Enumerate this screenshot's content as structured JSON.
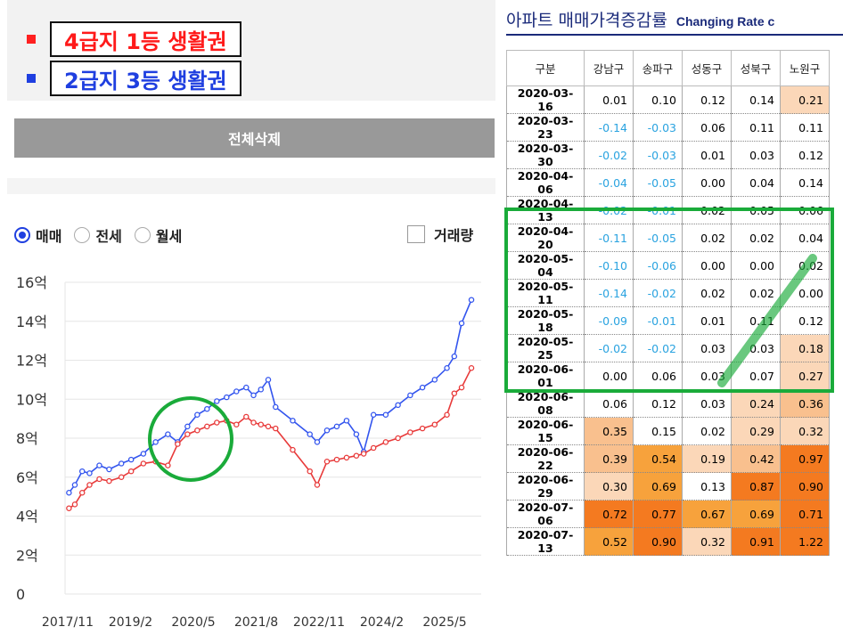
{
  "legend": {
    "items": [
      {
        "label": "4급지 1등 생활권",
        "color": "#ff2020"
      },
      {
        "label": "2급지 3등 생활권",
        "color": "#1f3fe0"
      }
    ]
  },
  "toolbar": {
    "clear_all_label": "전체삭제"
  },
  "trade_type": {
    "options": [
      "매매",
      "전세",
      "월세"
    ],
    "selected": "매매",
    "volume_label": "거래량",
    "volume_checked": false
  },
  "colors": {
    "red_series": "#e83a3a",
    "blue_series": "#3355ee",
    "annotation_green": "#1aab3a"
  },
  "table": {
    "title_kr": "아파트 매매가격증감률",
    "title_en": "Changing Rate c",
    "header": [
      "구분",
      "강남구",
      "송파구",
      "성동구",
      "성북구",
      "노원구"
    ],
    "rows": [
      {
        "date": "2020-03-16",
        "values": [
          "0.01",
          "0.10",
          "0.12",
          "0.14",
          "0.21"
        ]
      },
      {
        "date": "2020-03-23",
        "values": [
          "-0.14",
          "-0.03",
          "0.06",
          "0.11",
          "0.11"
        ]
      },
      {
        "date": "2020-03-30",
        "values": [
          "-0.02",
          "-0.03",
          "0.01",
          "0.03",
          "0.12"
        ]
      },
      {
        "date": "2020-04-06",
        "values": [
          "-0.04",
          "-0.05",
          "0.00",
          "0.04",
          "0.14"
        ]
      },
      {
        "date": "2020-04-13",
        "values": [
          "-0.02",
          "-0.01",
          "0.02",
          "0.05",
          "0.06"
        ]
      },
      {
        "date": "2020-04-20",
        "values": [
          "-0.11",
          "-0.05",
          "0.02",
          "0.02",
          "0.04"
        ]
      },
      {
        "date": "2020-05-04",
        "values": [
          "-0.10",
          "-0.06",
          "0.00",
          "0.00",
          "0.02"
        ]
      },
      {
        "date": "2020-05-11",
        "values": [
          "-0.14",
          "-0.02",
          "0.02",
          "0.02",
          "0.00"
        ]
      },
      {
        "date": "2020-05-18",
        "values": [
          "-0.09",
          "-0.01",
          "0.01",
          "0.11",
          "0.12"
        ]
      },
      {
        "date": "2020-05-25",
        "values": [
          "-0.02",
          "-0.02",
          "0.03",
          "0.03",
          "0.18"
        ]
      },
      {
        "date": "2020-06-01",
        "values": [
          "0.00",
          "0.06",
          "0.03",
          "0.07",
          "0.27"
        ]
      },
      {
        "date": "2020-06-08",
        "values": [
          "0.06",
          "0.12",
          "0.03",
          "0.24",
          "0.36"
        ]
      },
      {
        "date": "2020-06-15",
        "values": [
          "0.35",
          "0.15",
          "0.02",
          "0.29",
          "0.32"
        ]
      },
      {
        "date": "2020-06-22",
        "values": [
          "0.39",
          "0.54",
          "0.19",
          "0.42",
          "0.97"
        ]
      },
      {
        "date": "2020-06-29",
        "values": [
          "0.30",
          "0.69",
          "0.13",
          "0.87",
          "0.90"
        ]
      },
      {
        "date": "2020-07-06",
        "values": [
          "0.72",
          "0.77",
          "0.67",
          "0.69",
          "0.71"
        ]
      },
      {
        "date": "2020-07-13",
        "values": [
          "0.52",
          "0.90",
          "0.32",
          "0.91",
          "1.22"
        ]
      }
    ]
  },
  "chart_data": {
    "type": "line",
    "ylabel_ticks": [
      "0",
      "2억",
      "4억",
      "6억",
      "8억",
      "10억",
      "12억",
      "14억",
      "16억"
    ],
    "xlabel_ticks": [
      "2017/11",
      "2019/2",
      "2020/5",
      "2021/8",
      "2022/11",
      "2024/2",
      "2025/5"
    ],
    "ylim": [
      0,
      16
    ],
    "xlim": [
      2017.75,
      2026.25
    ],
    "grid": true,
    "series": [
      {
        "name": "2급지 3등 생활권",
        "color": "#3355ee",
        "x": [
          2017.83,
          2017.95,
          2018.1,
          2018.25,
          2018.45,
          2018.65,
          2018.9,
          2019.1,
          2019.35,
          2019.6,
          2019.85,
          2020.05,
          2020.25,
          2020.45,
          2020.65,
          2020.85,
          2021.05,
          2021.25,
          2021.45,
          2021.6,
          2021.75,
          2021.9,
          2022.05,
          2022.4,
          2022.75,
          2022.9,
          2023.1,
          2023.3,
          2023.5,
          2023.7,
          2023.85,
          2024.05,
          2024.3,
          2024.55,
          2024.8,
          2025.05,
          2025.3,
          2025.55,
          2025.7,
          2025.85,
          2026.05
        ],
        "y": [
          5.2,
          5.6,
          6.3,
          6.2,
          6.6,
          6.4,
          6.7,
          6.9,
          7.2,
          7.8,
          8.2,
          7.8,
          8.6,
          9.2,
          9.5,
          9.9,
          10.1,
          10.4,
          10.6,
          10.2,
          10.5,
          11.0,
          9.6,
          8.9,
          8.2,
          7.8,
          8.4,
          8.6,
          8.9,
          8.2,
          7.3,
          9.2,
          9.2,
          9.7,
          10.2,
          10.6,
          11.0,
          11.6,
          12.2,
          13.9,
          15.1
        ]
      },
      {
        "name": "4급지 1등 생활권",
        "color": "#e83a3a",
        "x": [
          2017.83,
          2017.95,
          2018.1,
          2018.25,
          2018.45,
          2018.65,
          2018.9,
          2019.1,
          2019.35,
          2019.6,
          2019.85,
          2020.05,
          2020.25,
          2020.45,
          2020.65,
          2020.85,
          2021.05,
          2021.25,
          2021.45,
          2021.6,
          2021.75,
          2021.9,
          2022.05,
          2022.4,
          2022.75,
          2022.9,
          2023.1,
          2023.3,
          2023.5,
          2023.7,
          2023.85,
          2024.05,
          2024.3,
          2024.55,
          2024.8,
          2025.05,
          2025.3,
          2025.55,
          2025.7,
          2025.85,
          2026.05
        ],
        "y": [
          4.4,
          4.6,
          5.2,
          5.6,
          5.9,
          5.8,
          6.0,
          6.3,
          6.7,
          6.8,
          6.6,
          7.7,
          8.2,
          8.4,
          8.6,
          8.8,
          8.9,
          8.7,
          9.1,
          8.8,
          8.7,
          8.6,
          8.5,
          7.4,
          6.3,
          5.6,
          6.8,
          6.9,
          7.0,
          7.1,
          7.2,
          7.5,
          7.8,
          8.0,
          8.3,
          8.5,
          8.7,
          9.2,
          10.3,
          10.6,
          11.6
        ]
      }
    ]
  }
}
